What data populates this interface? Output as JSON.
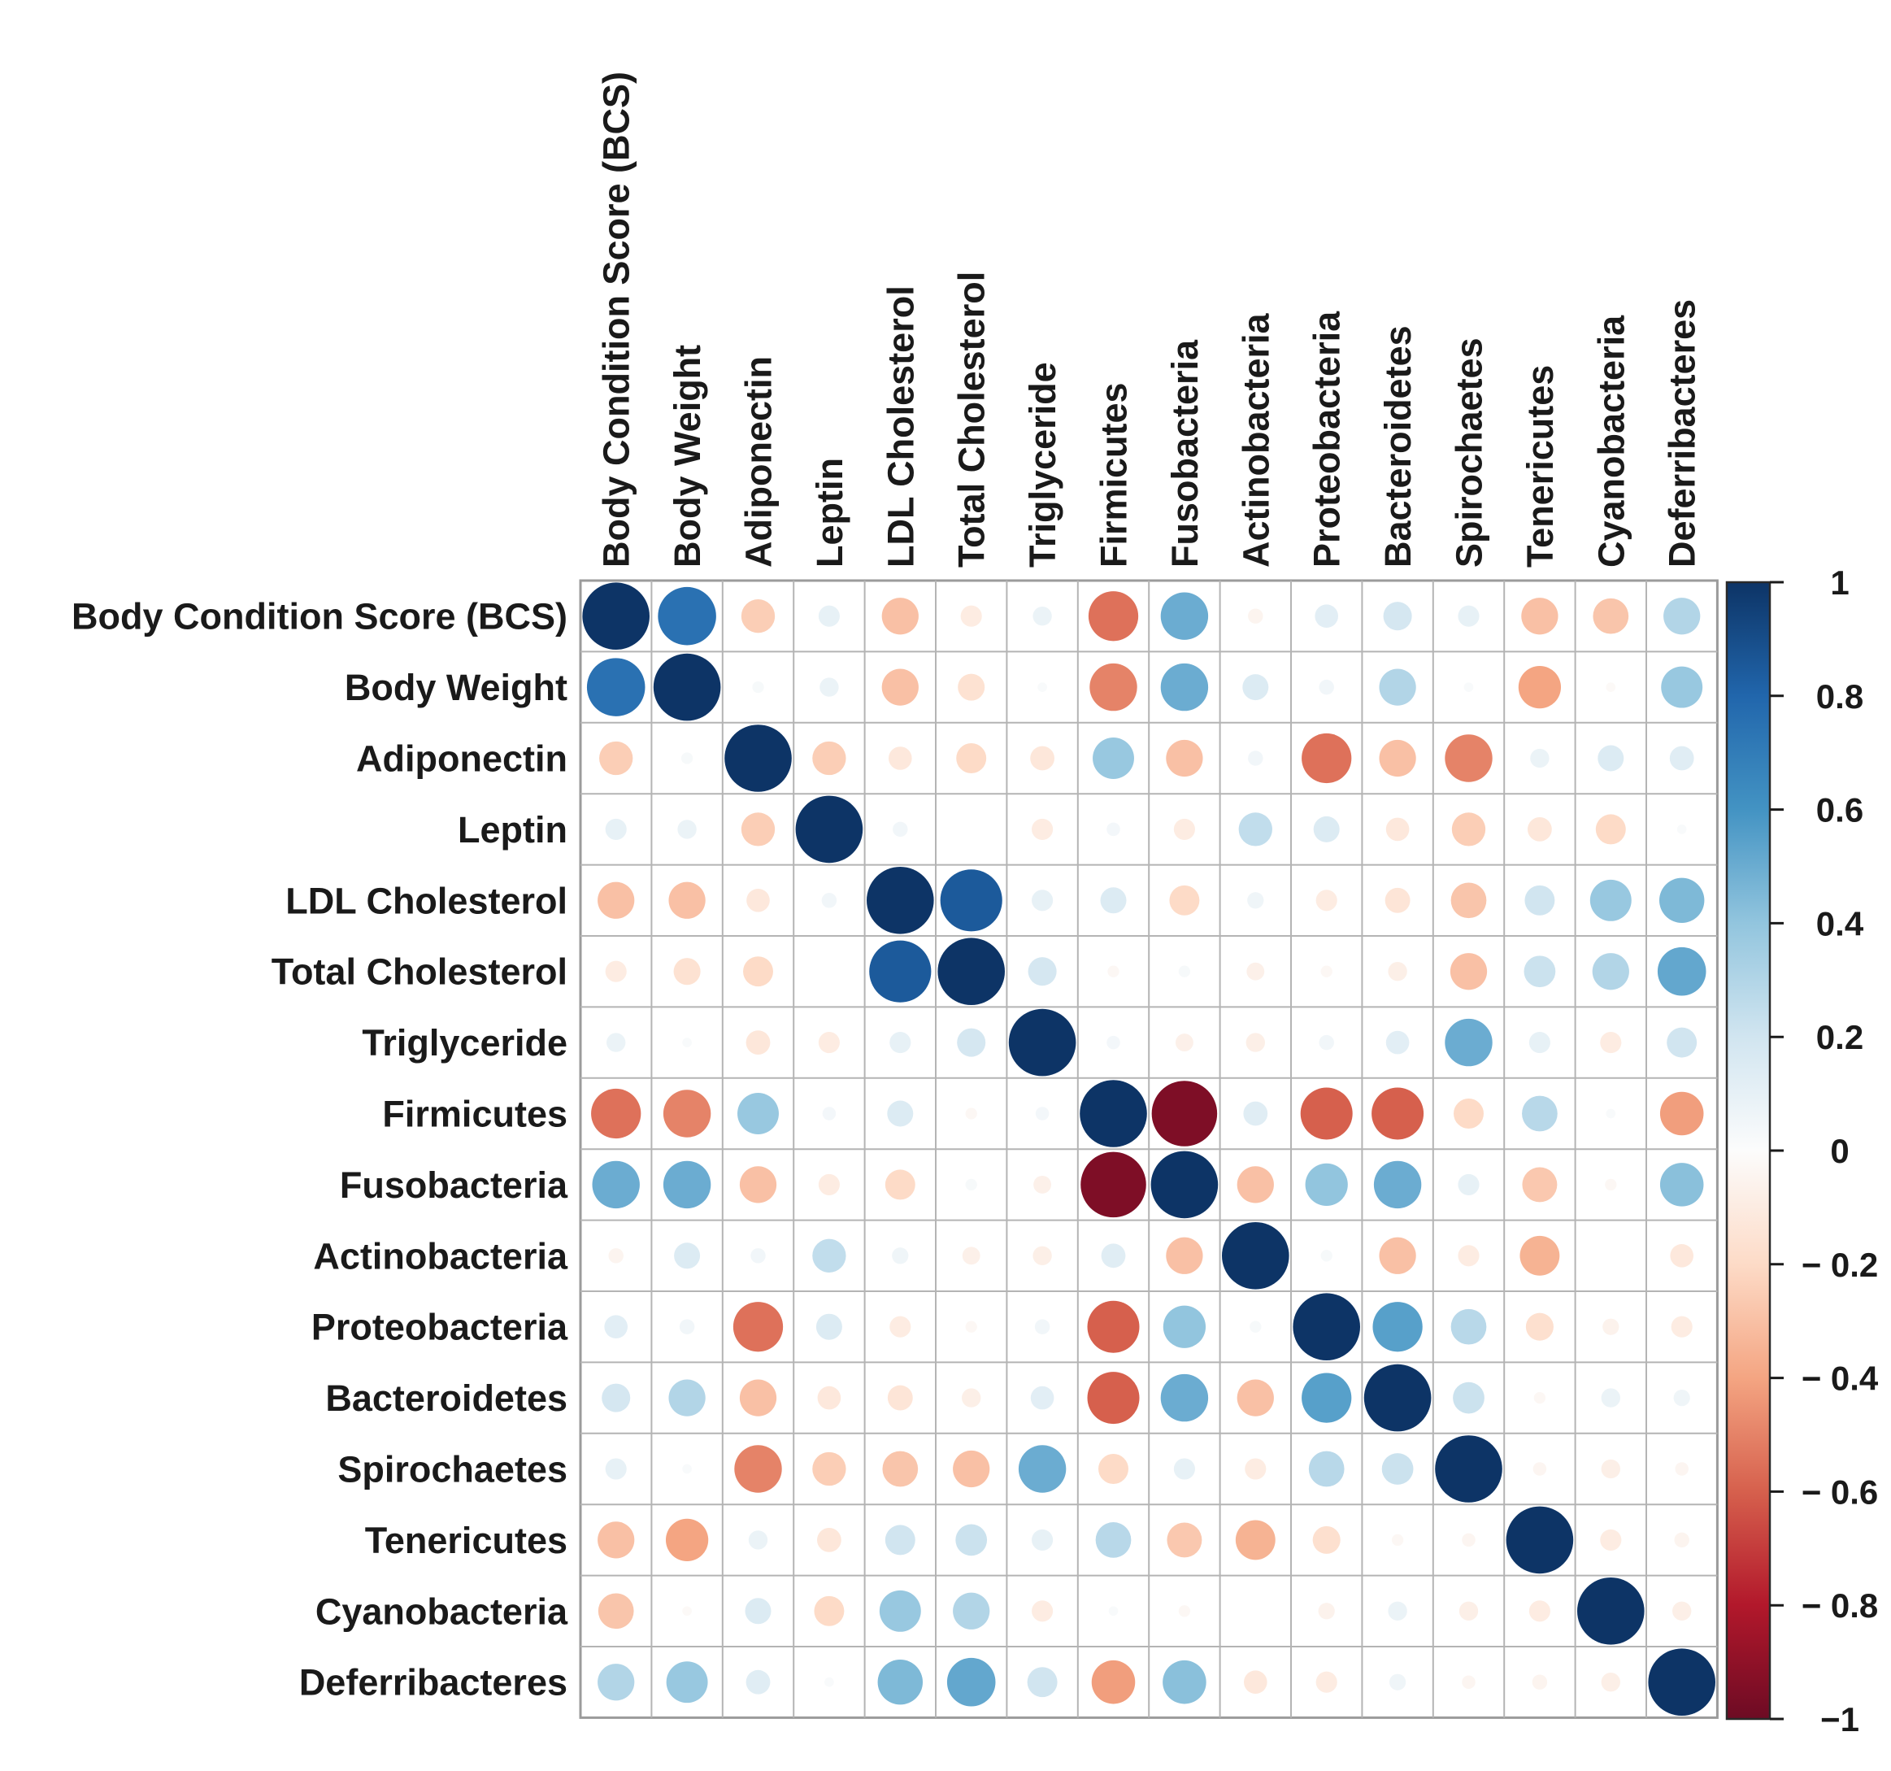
{
  "figure": {
    "background": "#ffffff",
    "kind": "correlation matrix (corrplot circle style)"
  },
  "chart_data": {
    "type": "heatmap",
    "subtype": "correlation-circle-matrix",
    "title": "",
    "variables": [
      "Body Condition Score (BCS)",
      "Body Weight",
      "Adiponectin",
      "Leptin",
      "LDL Cholesterol",
      "Total Cholesterol",
      "Triglyceride",
      "Firmicutes",
      "Fusobacteria",
      "Actinobacteria",
      "Proteobacteria",
      "Bacteroidetes",
      "Spirochaetes",
      "Tenericutes",
      "Cyanobacteria",
      "Deferribacteres"
    ],
    "matrix": [
      [
        1.0,
        0.75,
        -0.25,
        0.1,
        -0.3,
        -0.1,
        0.08,
        -0.55,
        0.5,
        -0.05,
        0.12,
        0.18,
        0.1,
        -0.3,
        -0.28,
        0.3
      ],
      [
        0.75,
        1.0,
        0.03,
        0.08,
        -0.3,
        -0.16,
        0.02,
        -0.5,
        0.5,
        0.15,
        0.05,
        0.3,
        0.02,
        -0.4,
        -0.02,
        0.38
      ],
      [
        -0.25,
        0.03,
        1.0,
        -0.25,
        -0.12,
        -0.2,
        -0.13,
        0.38,
        -0.3,
        0.05,
        -0.55,
        -0.3,
        -0.5,
        0.08,
        0.15,
        0.13
      ],
      [
        0.1,
        0.08,
        -0.25,
        1.0,
        0.05,
        0.01,
        -0.1,
        0.04,
        -0.1,
        0.25,
        0.15,
        -0.12,
        -0.25,
        -0.13,
        -0.2,
        0.02
      ],
      [
        -0.3,
        -0.3,
        -0.12,
        0.05,
        1.0,
        0.85,
        0.1,
        0.15,
        -0.2,
        0.06,
        -0.1,
        -0.14,
        -0.28,
        0.2,
        0.38,
        0.45
      ],
      [
        -0.1,
        -0.16,
        -0.2,
        0.01,
        0.85,
        1.0,
        0.18,
        -0.03,
        0.03,
        -0.07,
        -0.03,
        -0.08,
        -0.3,
        0.22,
        0.3,
        0.52
      ],
      [
        0.08,
        0.02,
        -0.13,
        -0.1,
        0.1,
        0.18,
        1.0,
        0.04,
        -0.07,
        -0.08,
        0.05,
        0.12,
        0.5,
        0.1,
        -0.1,
        0.2
      ],
      [
        -0.55,
        -0.5,
        0.38,
        0.04,
        0.15,
        -0.03,
        0.04,
        1.0,
        -0.95,
        0.13,
        -0.6,
        -0.6,
        -0.2,
        0.28,
        0.02,
        -0.42
      ],
      [
        0.5,
        0.5,
        -0.3,
        -0.1,
        -0.2,
        0.03,
        -0.07,
        -0.95,
        1.0,
        -0.3,
        0.4,
        0.5,
        0.1,
        -0.27,
        -0.03,
        0.42
      ],
      [
        -0.05,
        0.15,
        0.05,
        0.25,
        0.06,
        -0.07,
        -0.08,
        0.13,
        -0.3,
        1.0,
        0.03,
        -0.3,
        -0.1,
        -0.35,
        0.0,
        -0.12
      ],
      [
        0.12,
        0.05,
        -0.55,
        0.15,
        -0.1,
        -0.03,
        0.05,
        -0.6,
        0.4,
        0.03,
        1.0,
        0.55,
        0.28,
        -0.17,
        -0.06,
        -0.1
      ],
      [
        0.18,
        0.3,
        -0.3,
        -0.12,
        -0.14,
        -0.08,
        0.12,
        -0.6,
        0.5,
        -0.3,
        0.55,
        1.0,
        0.22,
        -0.03,
        0.08,
        0.06
      ],
      [
        0.1,
        0.02,
        -0.5,
        -0.25,
        -0.28,
        -0.3,
        0.5,
        -0.2,
        0.1,
        -0.1,
        0.28,
        0.22,
        1.0,
        -0.04,
        -0.08,
        -0.04
      ],
      [
        -0.3,
        -0.4,
        0.08,
        -0.13,
        0.2,
        0.22,
        0.1,
        0.28,
        -0.27,
        -0.35,
        -0.17,
        -0.03,
        -0.04,
        1.0,
        -0.1,
        -0.05
      ],
      [
        -0.28,
        -0.02,
        0.15,
        -0.2,
        0.38,
        0.3,
        -0.1,
        0.02,
        -0.03,
        0.0,
        -0.06,
        0.08,
        -0.08,
        -0.1,
        1.0,
        -0.08
      ],
      [
        0.3,
        0.38,
        0.13,
        0.02,
        0.45,
        0.52,
        0.2,
        -0.42,
        0.42,
        -0.12,
        -0.1,
        0.06,
        -0.04,
        -0.05,
        -0.08,
        1.0
      ]
    ],
    "colorbar": {
      "min": -1,
      "max": 1,
      "tick_values": [
        1,
        0.8,
        0.6,
        0.4,
        0.2,
        0,
        -0.2,
        -0.4,
        -0.6,
        -0.8,
        -1
      ],
      "tick_labels": [
        "1",
        "0.8",
        "0.6",
        "0.4",
        "0.2",
        "0",
        "− 0.2",
        "− 0.4",
        "− 0.6",
        "− 0.8",
        "−1"
      ],
      "palette": [
        {
          "value": -1.0,
          "color": "#6d0b24"
        },
        {
          "value": -0.8,
          "color": "#b2182b"
        },
        {
          "value": -0.6,
          "color": "#d6604d"
        },
        {
          "value": -0.4,
          "color": "#f4a582"
        },
        {
          "value": -0.2,
          "color": "#fddbc7"
        },
        {
          "value": 0.0,
          "color": "#fcfcfc"
        },
        {
          "value": 0.2,
          "color": "#d1e5f0"
        },
        {
          "value": 0.4,
          "color": "#92c5de"
        },
        {
          "value": 0.6,
          "color": "#4393c3"
        },
        {
          "value": 0.8,
          "color": "#2166ac"
        },
        {
          "value": 1.0,
          "color": "#0d3466"
        }
      ]
    },
    "layout_hints": {
      "legend_position": "right",
      "grid_on": true,
      "grid_line_color": "#b4b4b4",
      "outer_border_color": "#9b9b9b",
      "label_color": "#1a1a1a",
      "cell_background": "#ffffff",
      "circle_area_proportional_to_abs_r": true
    }
  }
}
